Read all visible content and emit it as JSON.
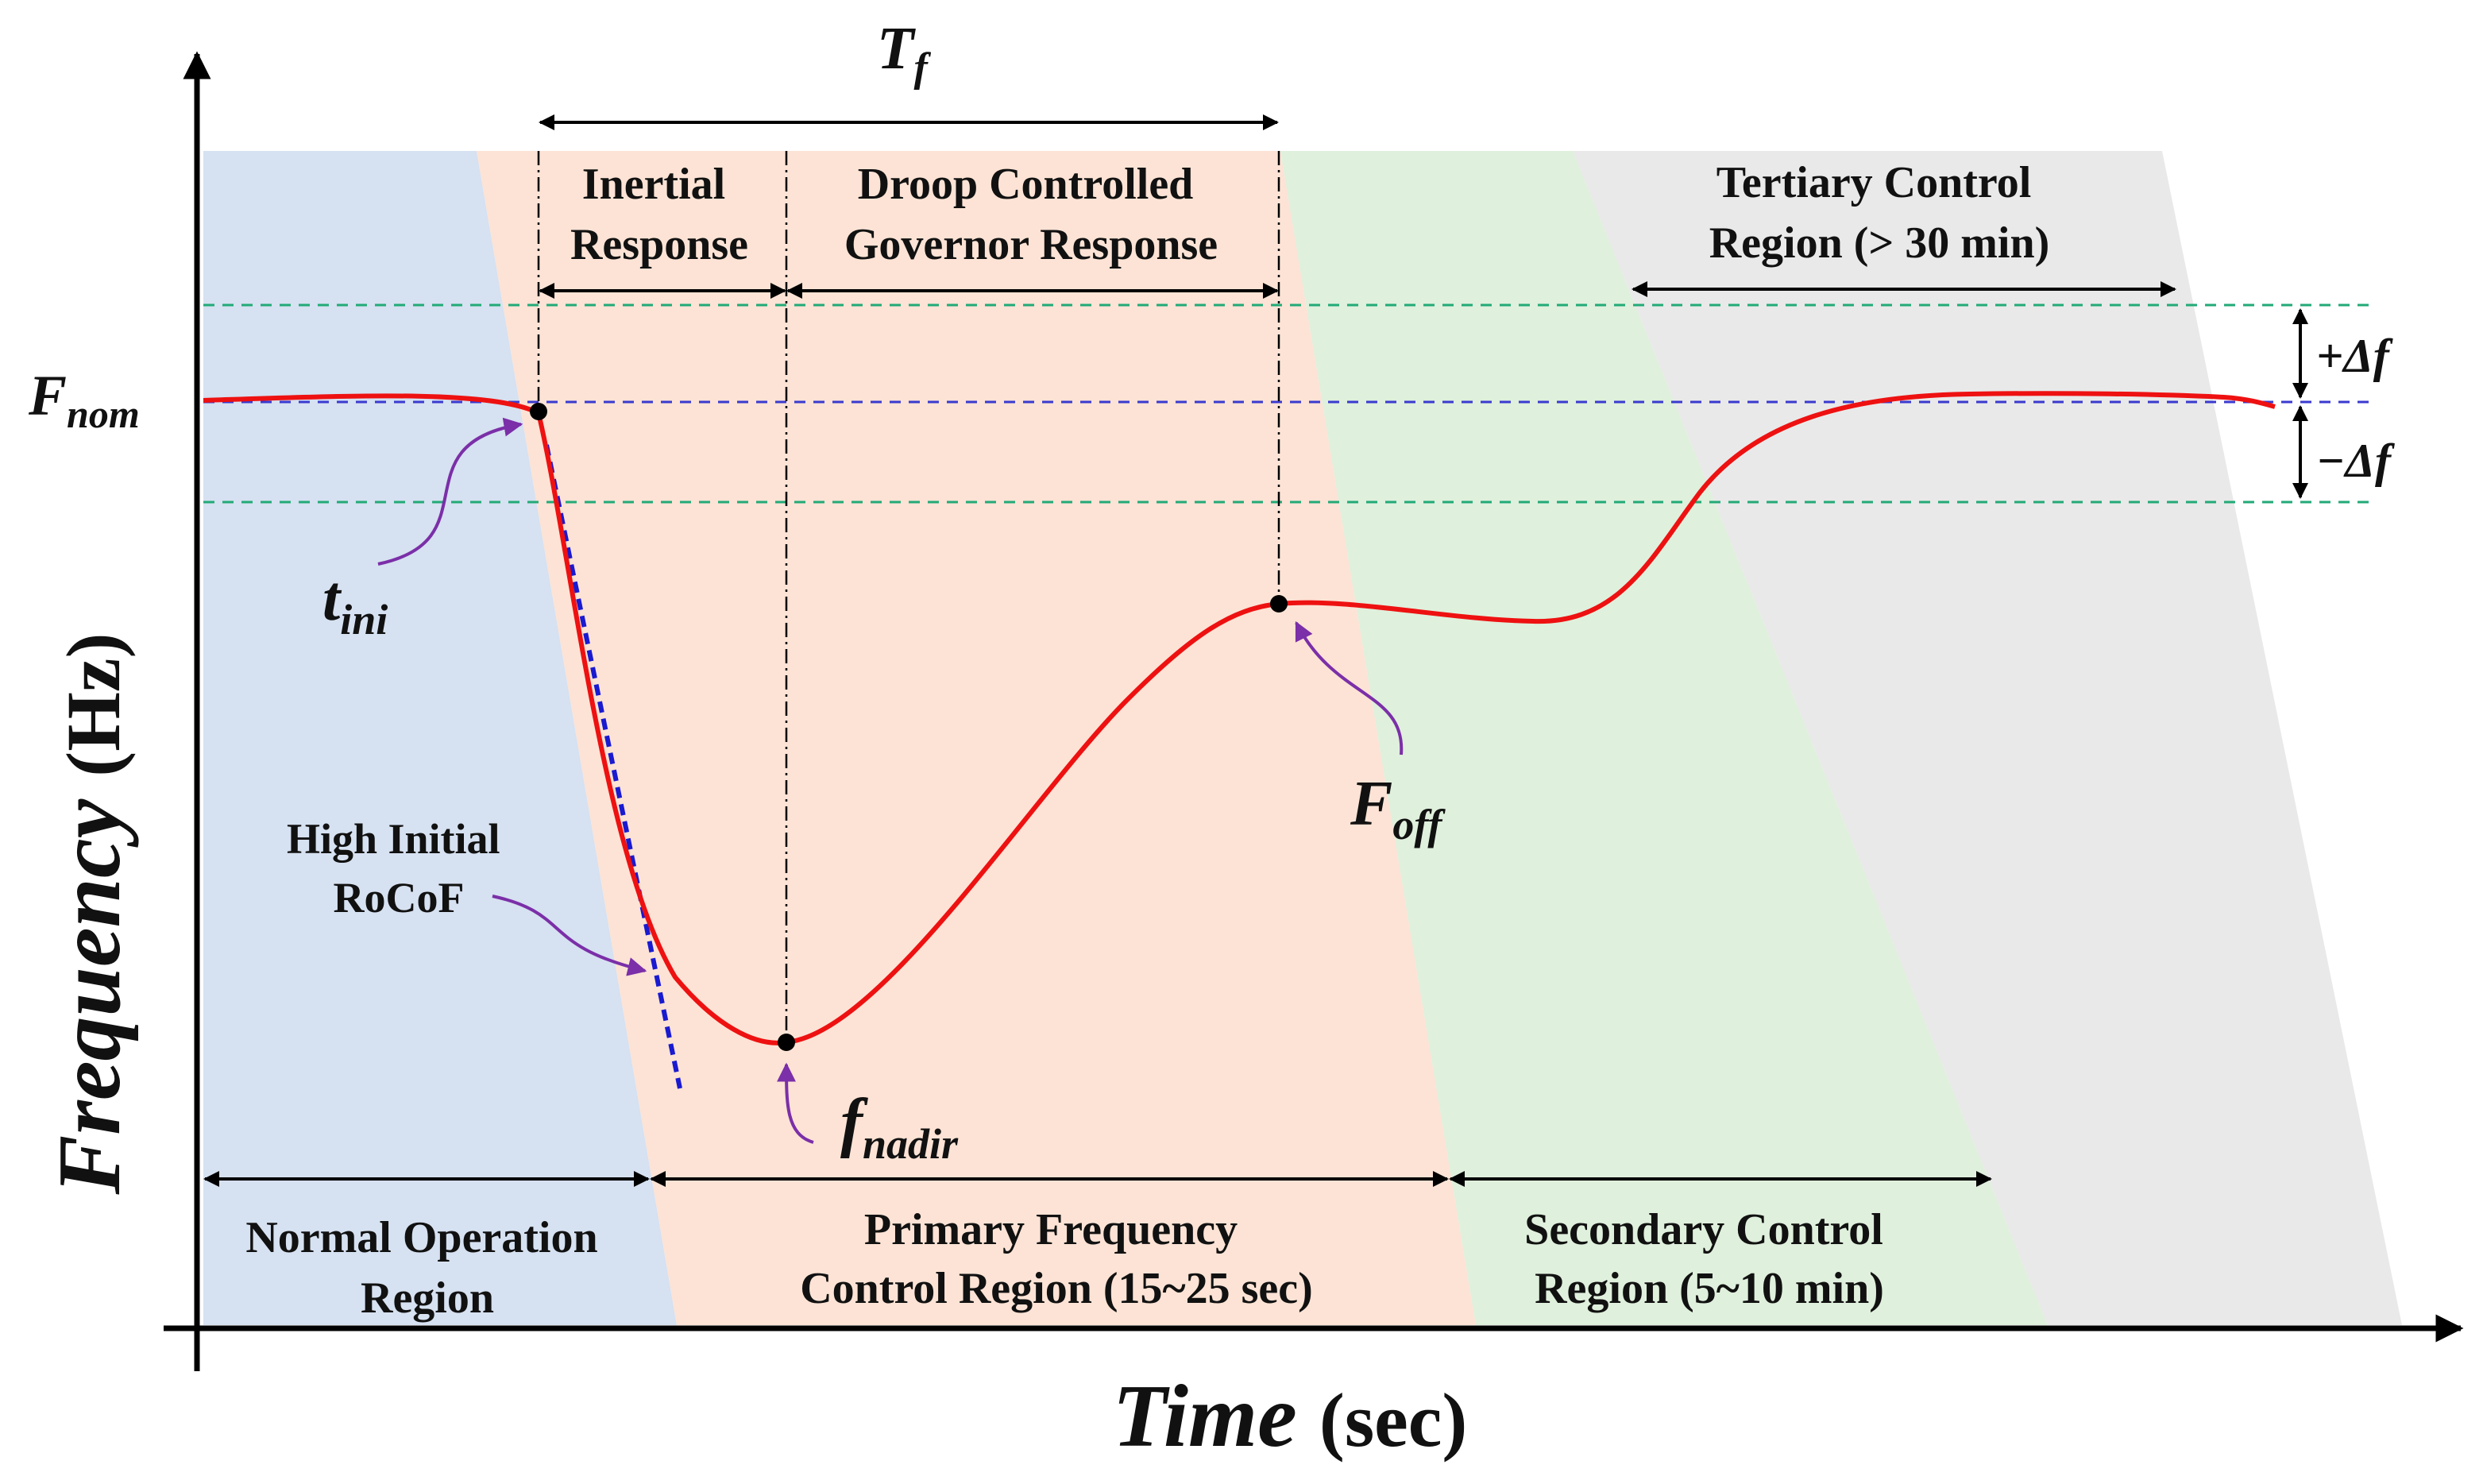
{
  "axes": {
    "y_label_word": "Frequency",
    "y_label_unit": "(Hz)",
    "x_label_word": "Time",
    "x_label_unit": "(sec)"
  },
  "symbols": {
    "f_nom": {
      "base": "F",
      "sub": "nom"
    },
    "t_ini": {
      "base": "t",
      "sub": "ini"
    },
    "f_nadir": {
      "base": "f",
      "sub": "nadir"
    },
    "f_off": {
      "base": "F",
      "sub": "off"
    },
    "t_f": {
      "base": "T",
      "sub": "f"
    },
    "plus_delta": "+Δf",
    "minus_delta": "−Δf"
  },
  "labels": {
    "inertial": [
      "Inertial",
      "Response"
    ],
    "droop": [
      "Droop Controlled",
      "Governor Response"
    ],
    "tertiary": [
      "Tertiary Control",
      "Region (> 30 min)"
    ],
    "rocof": [
      "High Initial",
      "RoCoF"
    ],
    "normal": [
      "Normal Operation",
      "Region"
    ],
    "primary": [
      "Primary Frequency",
      "Control Region (15~25 sec)"
    ],
    "secondary": [
      "Secondary Control",
      "Region (5~10 min)"
    ]
  },
  "colors": {
    "normal_region": "#d6e1f1",
    "primary_region": "#fce3d5",
    "secondary_region": "#dff0dc",
    "tertiary_region": "#e9e9e9",
    "curve": "#ee1111",
    "nominal_line": "#3a3ad0",
    "band_line": "#22aa77",
    "rocof_line": "#1a1ad0",
    "pointer": "#7b2fa8"
  }
}
